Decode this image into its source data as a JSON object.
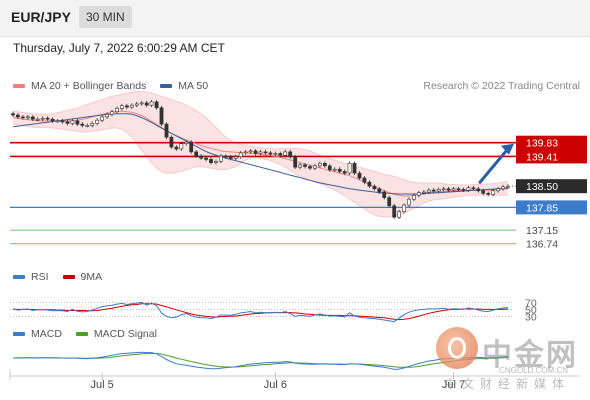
{
  "header": {
    "pair": "EUR/JPY",
    "timeframe": "30 MIN",
    "datetime": "Thursday, July 7, 2022 6:00:29 AM CET"
  },
  "copyright": "Research © 2022 Trading Central",
  "colors": {
    "ma20": "#f08080",
    "ma50": "#3d5f96",
    "resistance": "#cc0000",
    "pivot": "#3d7cc9",
    "support": "#8fcf8f",
    "price_tag": "#2b2b2b",
    "arrow": "#2a5ea8",
    "rsi": "#3d7cc9",
    "rsi_ma": "#cc0000",
    "macd": "#3d7cc9",
    "signal": "#4a9e2a"
  },
  "watermark": {
    "name": "中金网",
    "url": "CNGOLD.COM.CN",
    "tagline": "中文财经新媒体"
  },
  "chart_data": [
    {
      "type": "candlestick",
      "panel": "price",
      "legend": [
        {
          "name": "MA 20 + Bollinger Bands",
          "color": "#f08080"
        },
        {
          "name": "MA 50",
          "color": "#3d5f96"
        }
      ],
      "legend_placement": "top-left",
      "ylim": [
        136.3,
        141.2
      ],
      "x_ticks": [
        {
          "label": "Jul 5",
          "index": 18
        },
        {
          "label": "Jul 6",
          "index": 53
        },
        {
          "label": "Jul 7",
          "index": 89
        }
      ],
      "levels": [
        {
          "value": 139.83,
          "label": "139.83",
          "kind": "resistance"
        },
        {
          "value": 139.41,
          "label": "139.41",
          "kind": "resistance"
        },
        {
          "value": 138.5,
          "label": "138.50",
          "kind": "price"
        },
        {
          "value": 137.85,
          "label": "137.85",
          "kind": "pivot"
        },
        {
          "value": 137.15,
          "label": "137.15",
          "kind": "support"
        },
        {
          "value": 136.74,
          "label": "136.74",
          "kind": "support"
        }
      ],
      "closes": [
        140.68,
        140.62,
        140.6,
        140.62,
        140.55,
        140.55,
        140.58,
        140.55,
        140.5,
        140.5,
        140.47,
        140.42,
        140.5,
        140.4,
        140.36,
        140.36,
        140.42,
        140.52,
        140.62,
        140.7,
        140.78,
        140.88,
        140.96,
        140.92,
        140.98,
        141.02,
        141.05,
        140.98,
        141.08,
        140.9,
        140.4,
        140.0,
        139.7,
        139.64,
        139.8,
        139.85,
        139.55,
        139.42,
        139.36,
        139.32,
        139.22,
        139.26,
        139.42,
        139.4,
        139.35,
        139.4,
        139.52,
        139.55,
        139.58,
        139.5,
        139.55,
        139.52,
        139.48,
        139.5,
        139.45,
        139.55,
        139.4,
        139.08,
        139.15,
        139.1,
        139.05,
        139.12,
        139.2,
        139.12,
        139.0,
        139.02,
        138.95,
        138.9,
        139.2,
        138.9,
        138.75,
        138.62,
        138.5,
        138.42,
        138.32,
        138.15,
        137.9,
        137.55,
        137.72,
        137.92,
        138.1,
        138.22,
        138.3,
        138.32,
        138.38,
        138.35,
        138.4,
        138.42,
        138.38,
        138.42,
        138.4,
        138.38,
        138.45,
        138.42,
        138.36,
        138.28,
        138.25,
        138.36,
        138.42,
        138.48,
        138.5
      ],
      "ma20": [
        140.6,
        140.58,
        140.55,
        140.54,
        140.52,
        140.5,
        140.5,
        140.5,
        140.5,
        140.5,
        140.5,
        140.5,
        140.5,
        140.52,
        140.55,
        140.58,
        140.62,
        140.66,
        140.7,
        140.73,
        140.76,
        140.78,
        140.8,
        140.78,
        140.76,
        140.72,
        140.66,
        140.58,
        140.48,
        140.4,
        140.3,
        140.2,
        140.12,
        140.05,
        139.98,
        139.92,
        139.86,
        139.8,
        139.74,
        139.7,
        139.66,
        139.62,
        139.58,
        139.56,
        139.55,
        139.54,
        139.53,
        139.52,
        139.51,
        139.5,
        139.48,
        139.46,
        139.44,
        139.42,
        139.38,
        139.34,
        139.3,
        139.26,
        139.22,
        139.18,
        139.14,
        139.1,
        139.06,
        139.02,
        138.98,
        138.94,
        138.9,
        138.86,
        138.82,
        138.76,
        138.7,
        138.62,
        138.55,
        138.48,
        138.42,
        138.36,
        138.3,
        138.25,
        138.22,
        138.2,
        138.2,
        138.22,
        138.25,
        138.28,
        138.3,
        138.32,
        138.33,
        138.34,
        138.35,
        138.36,
        138.36,
        138.37,
        138.38,
        138.38,
        138.38,
        138.38,
        138.38,
        138.39,
        138.4,
        138.41,
        138.42
      ],
      "bb_upper": [
        140.8,
        140.78,
        140.76,
        140.74,
        140.72,
        140.7,
        140.7,
        140.7,
        140.72,
        140.75,
        140.78,
        140.82,
        140.85,
        140.9,
        140.95,
        141.0,
        141.05,
        141.1,
        141.15,
        141.2,
        141.25,
        141.28,
        141.32,
        141.35,
        141.38,
        141.4,
        141.4,
        141.38,
        141.35,
        141.3,
        141.25,
        141.2,
        141.15,
        141.1,
        141.05,
        140.98,
        140.9,
        140.82,
        140.72,
        140.6,
        140.45,
        140.3,
        140.15,
        140.0,
        139.9,
        139.82,
        139.78,
        139.75,
        139.72,
        139.7,
        139.68,
        139.66,
        139.65,
        139.64,
        139.64,
        139.65,
        139.66,
        139.66,
        139.65,
        139.62,
        139.58,
        139.52,
        139.46,
        139.4,
        139.35,
        139.3,
        139.25,
        139.2,
        139.16,
        139.12,
        139.08,
        139.04,
        139.0,
        138.95,
        138.9,
        138.86,
        138.83,
        138.8,
        138.75,
        138.7,
        138.65,
        138.62,
        138.6,
        138.6,
        138.6,
        138.6,
        138.6,
        138.58,
        138.56,
        138.55,
        138.54,
        138.54,
        138.54,
        138.55,
        138.56,
        138.56,
        138.57,
        138.58,
        138.6,
        138.62,
        138.64
      ],
      "bb_lower": [
        140.4,
        140.38,
        140.35,
        140.33,
        140.3,
        140.3,
        140.3,
        140.3,
        140.28,
        140.26,
        140.24,
        140.22,
        140.2,
        140.18,
        140.16,
        140.16,
        140.18,
        140.2,
        140.22,
        140.25,
        140.28,
        140.28,
        140.25,
        140.15,
        140.0,
        139.8,
        139.6,
        139.4,
        139.2,
        139.05,
        138.95,
        138.9,
        138.9,
        138.92,
        138.95,
        139.0,
        139.05,
        139.1,
        139.1,
        139.08,
        139.05,
        139.02,
        139.0,
        139.0,
        139.05,
        139.1,
        139.2,
        139.3,
        139.35,
        139.38,
        139.36,
        139.32,
        139.28,
        139.22,
        139.16,
        139.08,
        138.98,
        138.88,
        138.8,
        138.74,
        138.68,
        138.62,
        138.58,
        138.52,
        138.45,
        138.38,
        138.3,
        138.2,
        138.1,
        138.0,
        137.9,
        137.8,
        137.7,
        137.62,
        137.58,
        137.56,
        137.56,
        137.58,
        137.62,
        137.68,
        137.75,
        137.82,
        137.9,
        137.98,
        138.04,
        138.08,
        138.1,
        138.12,
        138.14,
        138.16,
        138.18,
        138.2,
        138.22,
        138.22,
        138.22,
        138.22,
        138.22,
        138.22,
        138.22,
        138.22,
        138.22
      ],
      "ma50": [
        140.32,
        140.34,
        140.36,
        140.38,
        140.4,
        140.42,
        140.44,
        140.46,
        140.48,
        140.5,
        140.52,
        140.54,
        140.56,
        140.58,
        140.6,
        140.62,
        140.64,
        140.66,
        140.68,
        140.7,
        140.71,
        140.72,
        140.72,
        140.72,
        140.7,
        140.66,
        140.6,
        140.53,
        140.45,
        140.36,
        140.28,
        140.2,
        140.12,
        140.04,
        139.96,
        139.88,
        139.8,
        139.72,
        139.64,
        139.56,
        139.5,
        139.45,
        139.4,
        139.36,
        139.32,
        139.28,
        139.24,
        139.2,
        139.16,
        139.12,
        139.08,
        139.04,
        139.0,
        138.96,
        138.92,
        138.88,
        138.84,
        138.8,
        138.76,
        138.72,
        138.68,
        138.64,
        138.6,
        138.57,
        138.54,
        138.51,
        138.48,
        138.45,
        138.42,
        138.4,
        138.38,
        138.36,
        138.34,
        138.32,
        138.3,
        138.29,
        138.28,
        138.27,
        138.26,
        138.26,
        138.26,
        138.26,
        138.26,
        138.27,
        138.28,
        138.29,
        138.3,
        138.31,
        138.32,
        138.33,
        138.34,
        138.35,
        138.36,
        138.37,
        138.38,
        138.39,
        138.4,
        138.41,
        138.42,
        138.43,
        138.44
      ]
    },
    {
      "type": "line",
      "panel": "rsi",
      "legend": [
        {
          "name": "RSI",
          "color": "#3d7cc9"
        },
        {
          "name": "9MA",
          "color": "#cc0000"
        }
      ],
      "ylim": [
        0,
        100
      ],
      "levels": [
        {
          "value": 70,
          "label": "70"
        },
        {
          "value": 50,
          "label": "50"
        },
        {
          "value": 30,
          "label": "30"
        }
      ],
      "rsi": [
        52,
        48,
        50,
        51,
        47,
        49,
        50,
        48,
        46,
        47,
        46,
        44,
        50,
        45,
        43,
        44,
        48,
        53,
        58,
        60,
        62,
        65,
        67,
        64,
        66,
        68,
        70,
        62,
        68,
        60,
        40,
        30,
        26,
        28,
        35,
        38,
        32,
        28,
        26,
        26,
        24,
        28,
        34,
        34,
        33,
        36,
        40,
        42,
        44,
        40,
        42,
        41,
        40,
        42,
        40,
        44,
        38,
        30,
        33,
        32,
        30,
        34,
        37,
        34,
        31,
        32,
        30,
        29,
        40,
        31,
        28,
        26,
        25,
        24,
        22,
        20,
        18,
        15,
        25,
        35,
        42,
        46,
        49,
        50,
        52,
        51,
        52,
        53,
        50,
        52,
        51,
        50,
        54,
        52,
        48,
        45,
        44,
        48,
        52,
        54,
        55
      ],
      "ma9": [
        50,
        50,
        50,
        50,
        50,
        49,
        49,
        49,
        49,
        48,
        48,
        47,
        47,
        47,
        47,
        46,
        46,
        47,
        49,
        51,
        53,
        56,
        59,
        61,
        63,
        64,
        66,
        66,
        66,
        65,
        61,
        57,
        53,
        49,
        45,
        41,
        37,
        34,
        32,
        30,
        29,
        28,
        29,
        30,
        31,
        31,
        33,
        35,
        37,
        38,
        39,
        40,
        41,
        41,
        41,
        41,
        41,
        40,
        39,
        37,
        36,
        35,
        34,
        33,
        33,
        33,
        33,
        32,
        32,
        32,
        31,
        30,
        29,
        28,
        27,
        26,
        24,
        22,
        21,
        22,
        24,
        27,
        31,
        35,
        39,
        42,
        45,
        47,
        49,
        50,
        50,
        51,
        51,
        51,
        51,
        50,
        50,
        50,
        50,
        50,
        51
      ]
    },
    {
      "type": "line",
      "panel": "macd",
      "legend": [
        {
          "name": "MACD",
          "color": "#3d7cc9"
        },
        {
          "name": "MACD Signal",
          "color": "#4a9e2a"
        }
      ],
      "macd": [
        0.0,
        0.01,
        0.01,
        0.01,
        0.0,
        0.0,
        0.01,
        0.01,
        0.0,
        0.0,
        0.0,
        -0.01,
        0.0,
        -0.01,
        -0.02,
        -0.02,
        -0.01,
        0.01,
        0.03,
        0.06,
        0.09,
        0.12,
        0.15,
        0.16,
        0.17,
        0.18,
        0.19,
        0.18,
        0.18,
        0.14,
        0.05,
        -0.05,
        -0.13,
        -0.19,
        -0.22,
        -0.24,
        -0.27,
        -0.3,
        -0.32,
        -0.34,
        -0.36,
        -0.36,
        -0.34,
        -0.32,
        -0.31,
        -0.29,
        -0.26,
        -0.23,
        -0.2,
        -0.19,
        -0.17,
        -0.16,
        -0.15,
        -0.14,
        -0.14,
        -0.12,
        -0.13,
        -0.17,
        -0.19,
        -0.2,
        -0.21,
        -0.21,
        -0.2,
        -0.2,
        -0.21,
        -0.21,
        -0.22,
        -0.22,
        -0.19,
        -0.2,
        -0.21,
        -0.23,
        -0.25,
        -0.27,
        -0.29,
        -0.31,
        -0.34,
        -0.38,
        -0.37,
        -0.33,
        -0.28,
        -0.23,
        -0.18,
        -0.14,
        -0.1,
        -0.08,
        -0.05,
        -0.03,
        -0.02,
        -0.01,
        0.0,
        0.0,
        0.01,
        0.02,
        0.02,
        0.01,
        0.0,
        0.01,
        0.02,
        0.03,
        0.05
      ],
      "signal": [
        0.0,
        0.0,
        0.0,
        0.01,
        0.01,
        0.01,
        0.01,
        0.01,
        0.01,
        0.01,
        0.0,
        0.0,
        0.0,
        0.0,
        -0.01,
        -0.01,
        -0.01,
        -0.01,
        0.0,
        0.01,
        0.03,
        0.05,
        0.07,
        0.09,
        0.11,
        0.12,
        0.14,
        0.15,
        0.15,
        0.15,
        0.13,
        0.09,
        0.05,
        0.0,
        -0.04,
        -0.08,
        -0.12,
        -0.15,
        -0.19,
        -0.22,
        -0.25,
        -0.27,
        -0.29,
        -0.3,
        -0.3,
        -0.3,
        -0.29,
        -0.28,
        -0.26,
        -0.25,
        -0.23,
        -0.22,
        -0.21,
        -0.19,
        -0.18,
        -0.17,
        -0.16,
        -0.16,
        -0.17,
        -0.17,
        -0.18,
        -0.19,
        -0.19,
        -0.19,
        -0.2,
        -0.2,
        -0.2,
        -0.21,
        -0.2,
        -0.2,
        -0.2,
        -0.21,
        -0.22,
        -0.23,
        -0.24,
        -0.26,
        -0.27,
        -0.29,
        -0.31,
        -0.31,
        -0.31,
        -0.3,
        -0.28,
        -0.25,
        -0.22,
        -0.19,
        -0.17,
        -0.14,
        -0.12,
        -0.1,
        -0.08,
        -0.06,
        -0.05,
        -0.03,
        -0.02,
        -0.02,
        -0.01,
        -0.01,
        0.0,
        0.01,
        0.02
      ]
    }
  ]
}
